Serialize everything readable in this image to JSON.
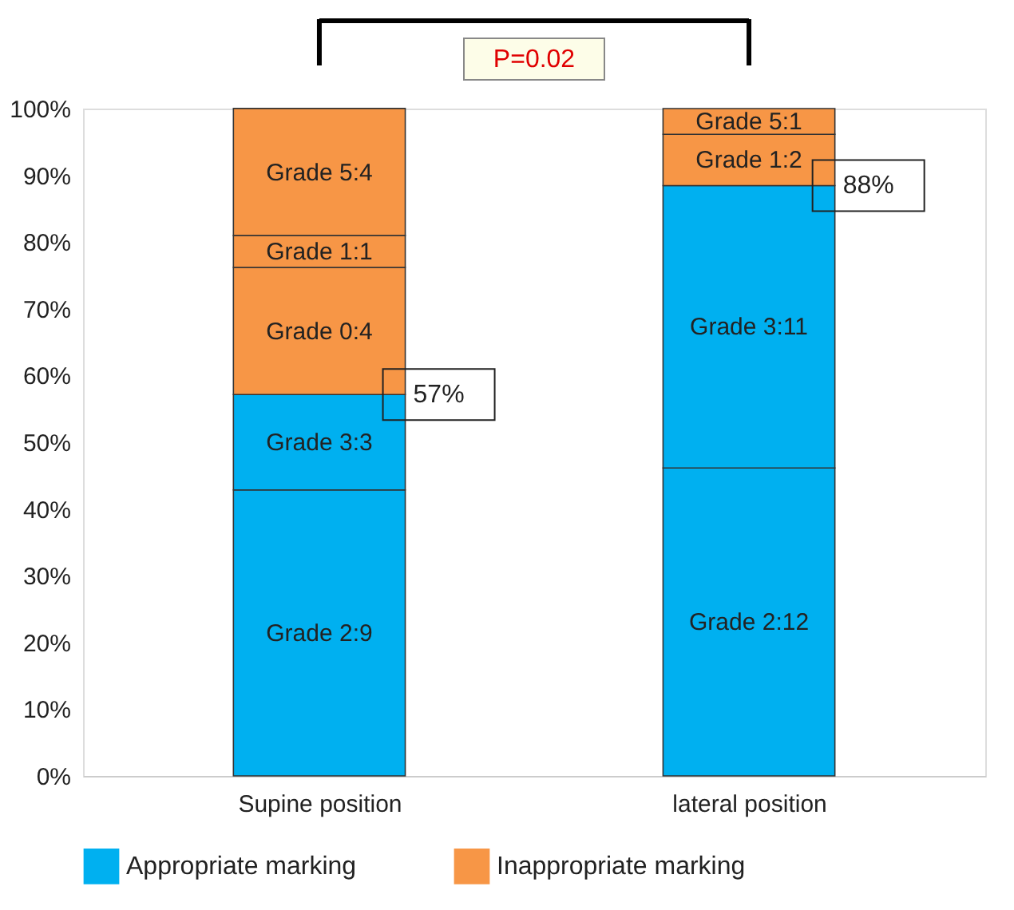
{
  "chart_data": {
    "type": "bar",
    "stacked": true,
    "categories": [
      "Supine position",
      "lateral position"
    ],
    "series": [
      {
        "name": "Appropriate marking",
        "color": "#00b0f0",
        "values": [
          42.86,
          46.15
        ],
        "value_labels": [
          "Grade 2:9",
          "Grade 2:12"
        ]
      },
      {
        "color": "#00b0f0",
        "values": [
          14.29,
          42.31
        ],
        "value_labels": [
          "Grade 3:3",
          "Grade 3:11"
        ]
      },
      {
        "name": "Inappropriate marking",
        "color": "#f79646",
        "values": [
          19.05,
          7.69
        ],
        "value_labels": [
          "Grade 0:4",
          "Grade 1:2"
        ]
      },
      {
        "color": "#f79646",
        "values": [
          4.76,
          3.85
        ],
        "value_labels": [
          "Grade 1:1",
          "Grade 5:1"
        ]
      },
      {
        "color": "#f79646",
        "values": [
          19.05,
          null
        ],
        "value_labels": [
          "Grade 5:4",
          null
        ]
      }
    ],
    "ylim": [
      0,
      100
    ],
    "yticks": [
      {
        "value": 0,
        "label": "0%"
      },
      {
        "value": 10,
        "label": "10%"
      },
      {
        "value": 20,
        "label": "20%"
      },
      {
        "value": 30,
        "label": "30%"
      },
      {
        "value": 40,
        "label": "40%"
      },
      {
        "value": 50,
        "label": "50%"
      },
      {
        "value": 60,
        "label": "60%"
      },
      {
        "value": 70,
        "label": "70%"
      },
      {
        "value": 80,
        "label": "80%"
      },
      {
        "value": 90,
        "label": "90%"
      },
      {
        "value": 100,
        "label": "100%"
      }
    ],
    "annotations": [
      "57%",
      "88%",
      "P=0.02"
    ],
    "grid": false,
    "legend": "bottom"
  }
}
